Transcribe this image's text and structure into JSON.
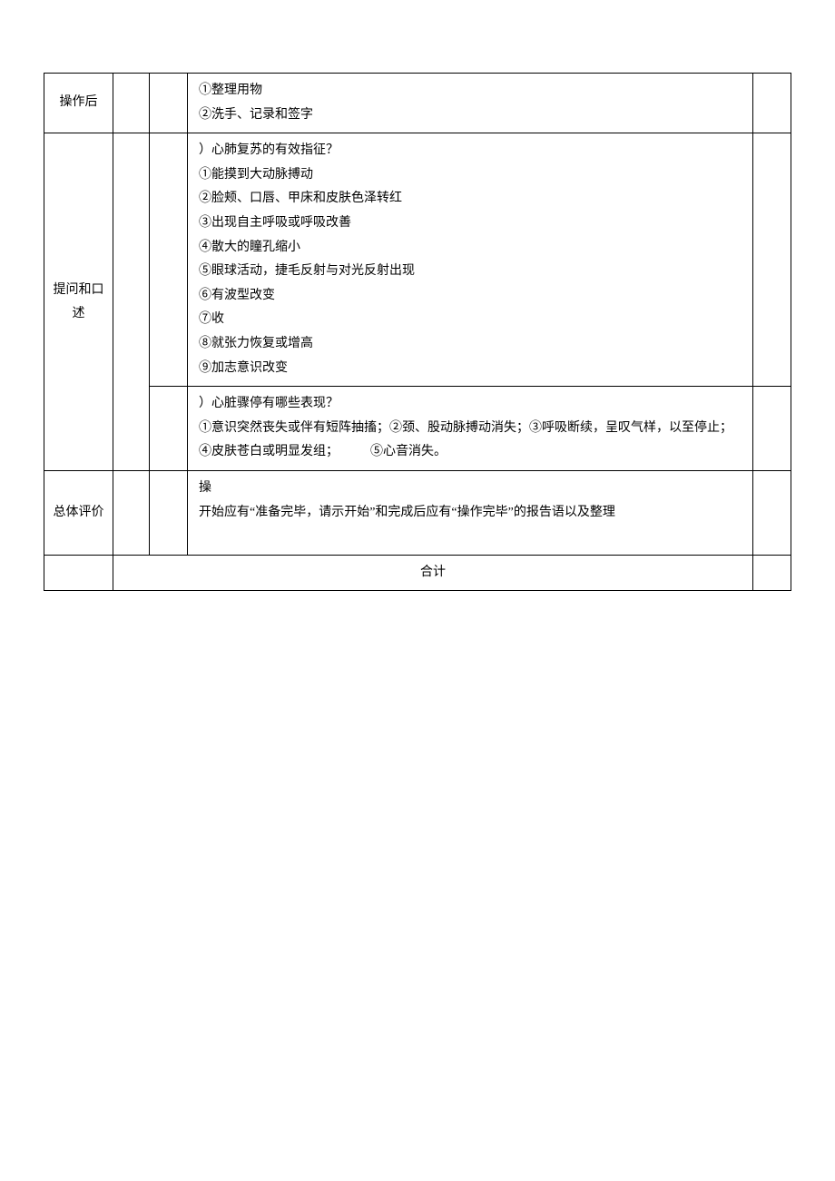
{
  "table": {
    "rows": [
      {
        "label": "操作后",
        "content_lines": [
          "①整理用物",
          "②洗手、记录和签字"
        ]
      },
      {
        "label": "提问和口述",
        "sub_rows": [
          {
            "content_lines": [
              "）心肺复苏的有效指征？",
              "①能摸到大动脉搏动",
              "②脸颊、口唇、甲床和皮肤色泽转红",
              "③出现自主呼吸或呼吸改善",
              "④散大的瞳孔缩小",
              "⑤眼球活动，捷毛反射与对光反射出现",
              "⑥有波型改变",
              "⑦收",
              "⑧就张力恢复或增高",
              "⑨加志意识改变"
            ]
          },
          {
            "content_lines_complex": [
              "）心脏骤停有哪些表现？",
              "①意识突然丧失或伴有短阵抽搐；②颈、股动脉搏动消失；③呼吸断续，呈叹气样，以至停止；",
              "④皮肤苍白或明显发组；　　　⑤心音消失。"
            ]
          }
        ]
      },
      {
        "label": "总体评价",
        "content_lines": [
          "操",
          "开始应有“准备完毕，请示开始”和完成后应有“操作完毕”的报告语以及整理"
        ],
        "trailing_empty": true
      }
    ],
    "total_label": "合计"
  }
}
